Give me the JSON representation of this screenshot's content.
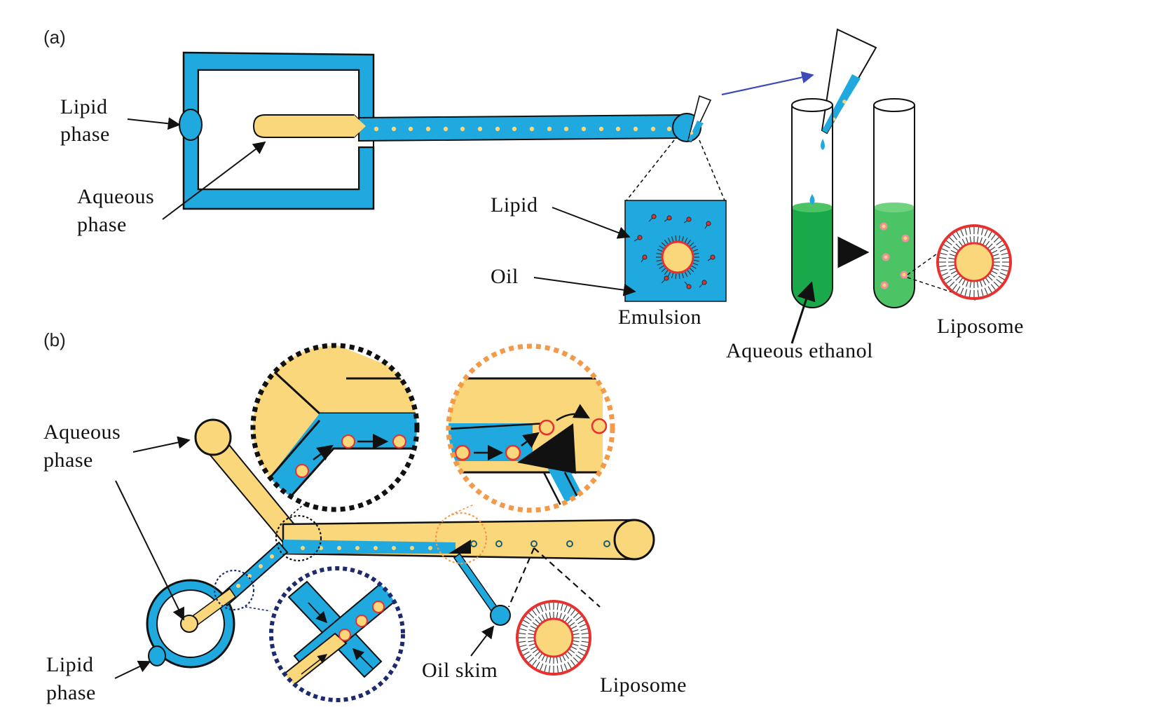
{
  "colors": {
    "aqueous": "#f9d77a",
    "lipid_oil": "#1fa9de",
    "ethanol": "#19a84a",
    "ethanol_light": "#4cc466",
    "lipid_head": "#e8302f",
    "outline": "#111111",
    "transfer_arrow": "#3d4bb8",
    "zoom_black": "#111111",
    "zoom_orange": "#f39a4a",
    "zoom_navy": "#1e2a6e"
  },
  "panel_a": {
    "label": "(a)",
    "lipid_phase_1": "Lipid",
    "lipid_phase_2": "phase",
    "aqueous_phase_1": "Aqueous",
    "aqueous_phase_2": "phase",
    "lipid": "Lipid",
    "oil": "Oil",
    "emulsion": "Emulsion",
    "aqueous_ethanol": "Aqueous ethanol",
    "liposome": "Liposome"
  },
  "panel_b": {
    "label": "(b)",
    "aqueous_phase_1": "Aqueous",
    "aqueous_phase_2": "phase",
    "lipid_phase_1": "Lipid",
    "lipid_phase_2": "phase",
    "oil_skim": "Oil skim",
    "liposome": "Liposome"
  }
}
